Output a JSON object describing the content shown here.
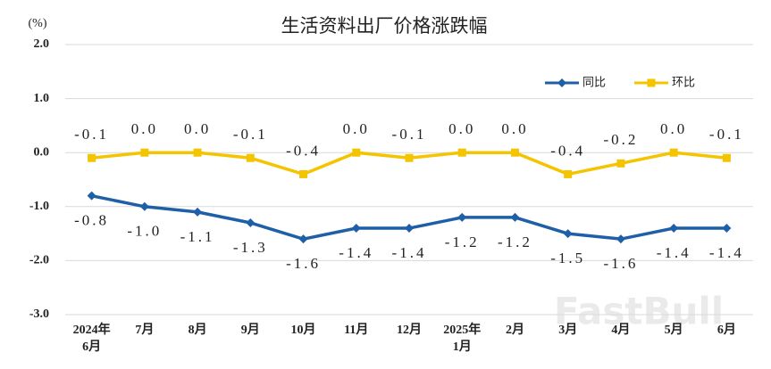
{
  "chart_data": {
    "type": "line",
    "title": "生活资料出厂价格涨跌幅",
    "y_unit_label": "(%)",
    "categories": [
      "2024年\n6月",
      "7月",
      "8月",
      "9月",
      "10月",
      "11月",
      "12月",
      "2025年\n1月",
      "2月",
      "3月",
      "4月",
      "5月",
      "6月"
    ],
    "series": [
      {
        "name": "同比",
        "color": "#1f5fa8",
        "marker": "diamond",
        "values": [
          -0.8,
          -1.0,
          -1.1,
          -1.3,
          -1.6,
          -1.4,
          -1.4,
          -1.2,
          -1.2,
          -1.5,
          -1.6,
          -1.4,
          -1.4
        ],
        "value_labels": [
          "-0.8",
          "-1.0",
          "-1.1",
          "-1.3",
          "-1.6",
          "-1.4",
          "-1.4",
          "-1.2",
          "-1.2",
          "-1.5",
          "-1.6",
          "-1.4",
          "-1.4"
        ]
      },
      {
        "name": "环比",
        "color": "#f5c400",
        "marker": "square",
        "values": [
          -0.1,
          0.0,
          0.0,
          -0.1,
          -0.4,
          0.0,
          -0.1,
          0.0,
          0.0,
          -0.4,
          -0.2,
          0.0,
          -0.1
        ],
        "value_labels": [
          "-0.1",
          "0.0",
          "0.0",
          "-0.1",
          "-0.4",
          "0.0",
          "-0.1",
          "0.0",
          "0.0",
          "-0.4",
          "-0.2",
          "0.0",
          "-0.1"
        ]
      }
    ],
    "ylim": [
      -3.0,
      2.0
    ],
    "yticks": [
      {
        "value": -3.0,
        "label": "-3.0"
      },
      {
        "value": -2.0,
        "label": "-2.0"
      },
      {
        "value": -1.0,
        "label": "-1.0"
      },
      {
        "value": 0.0,
        "label": "0.0"
      },
      {
        "value": 1.0,
        "label": "1.0"
      },
      {
        "value": 2.0,
        "label": "2.0"
      }
    ],
    "grid": true,
    "legend_position": "upper-right",
    "watermark": "FastBull"
  }
}
